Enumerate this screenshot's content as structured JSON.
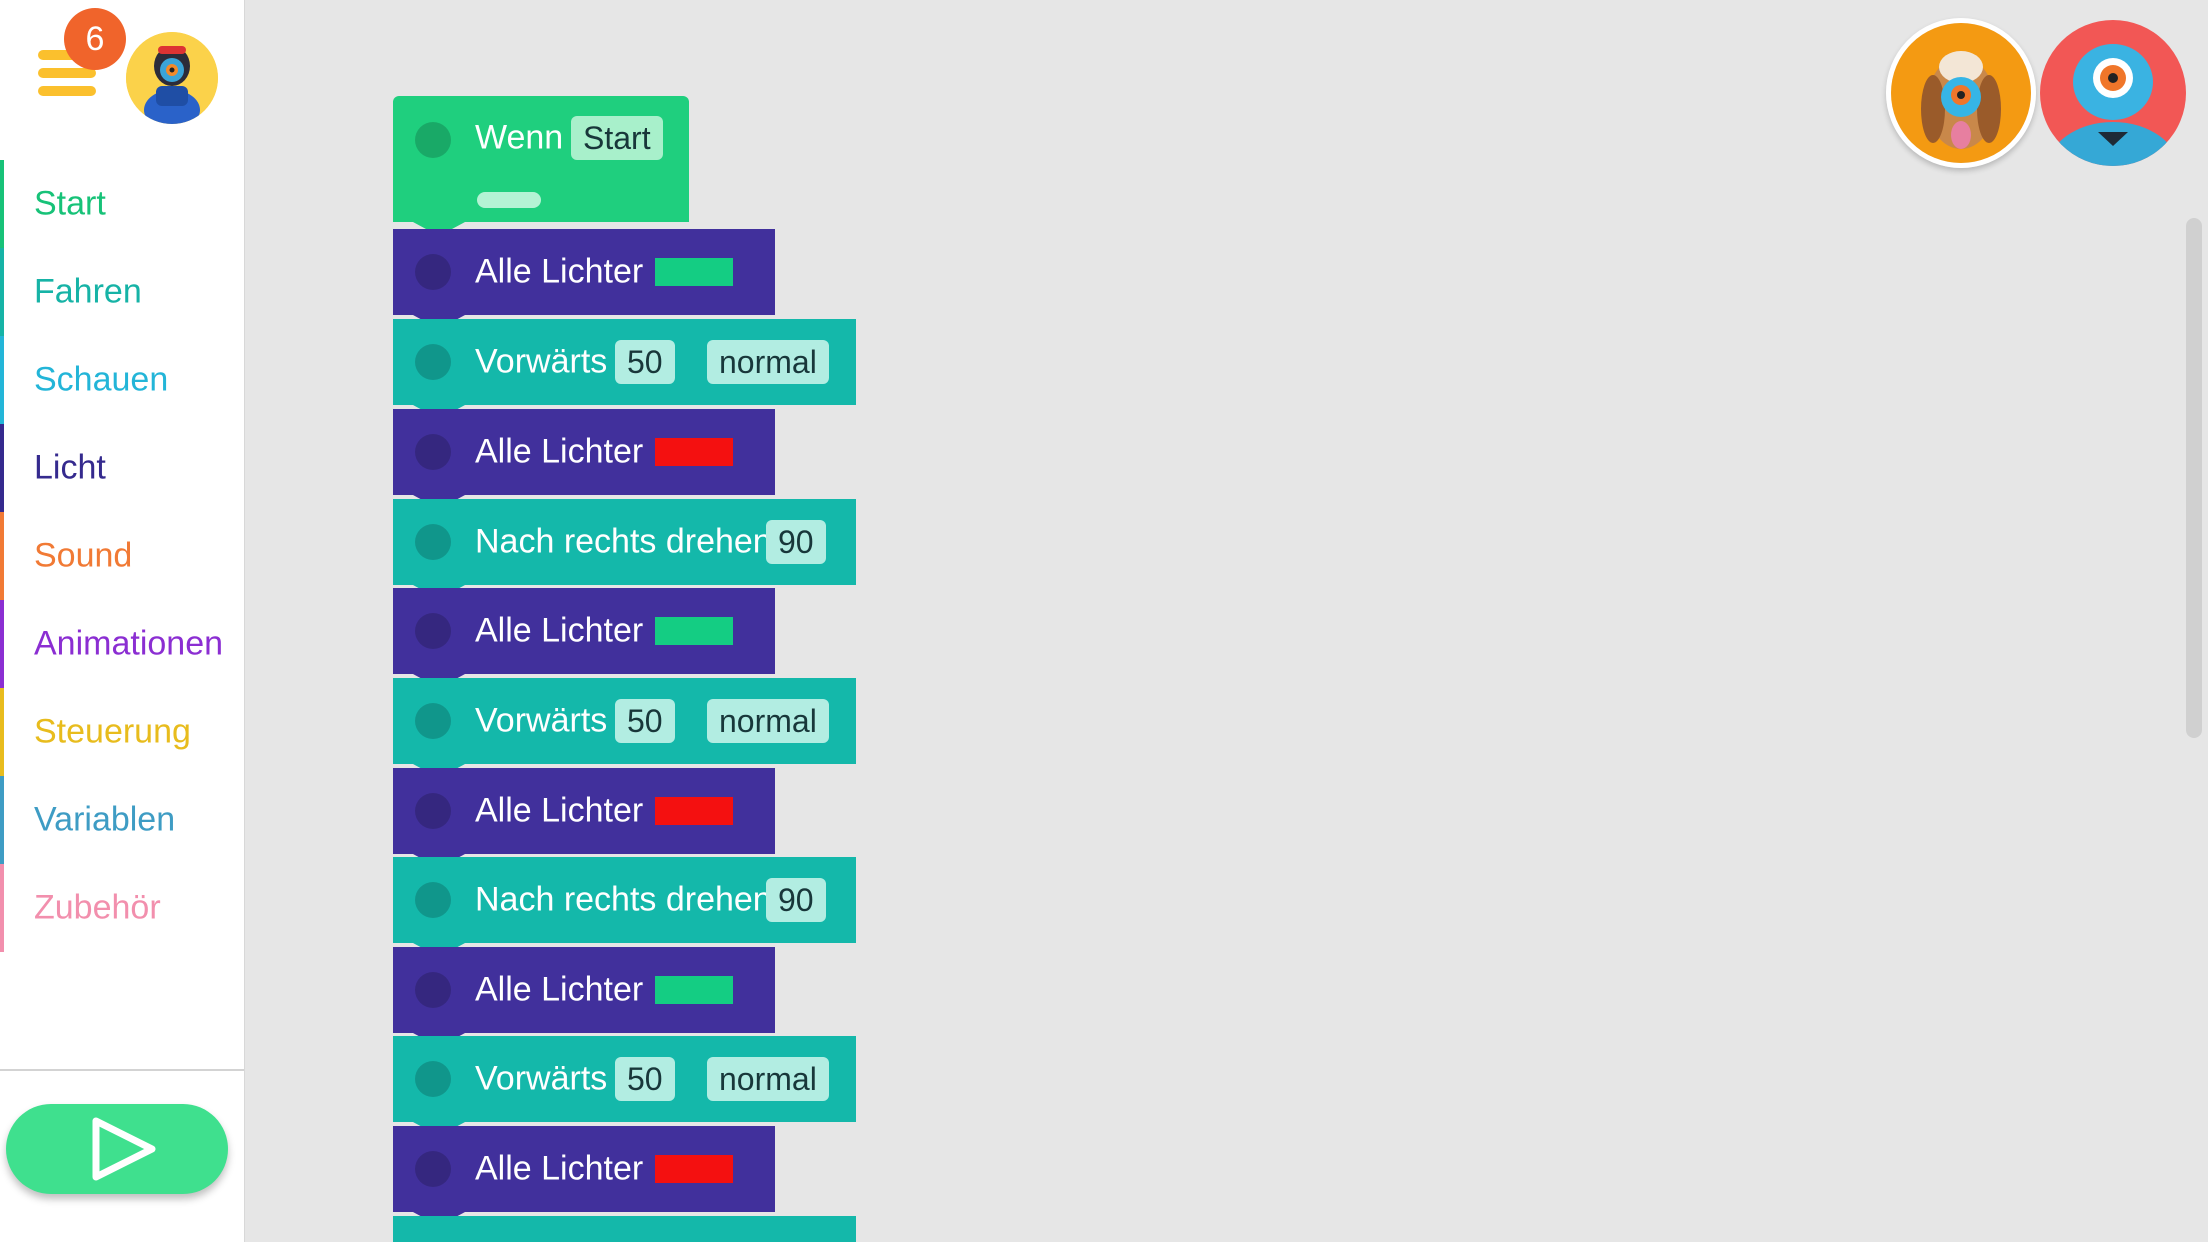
{
  "menu": {
    "badge_count": "6"
  },
  "sidebar": {
    "categories": [
      {
        "label": "Start",
        "color": "#17c278"
      },
      {
        "label": "Fahren",
        "color": "#16b3a6"
      },
      {
        "label": "Schauen",
        "color": "#23b5d8"
      },
      {
        "label": "Licht",
        "color": "#352a8e"
      },
      {
        "label": "Sound",
        "color": "#f17a35"
      },
      {
        "label": "Animationen",
        "color": "#8b2ed2"
      },
      {
        "label": "Steuerung",
        "color": "#e8bc1d"
      },
      {
        "label": "Variablen",
        "color": "#3e9cc4"
      },
      {
        "label": "Zubehör",
        "color": "#f28fad"
      }
    ]
  },
  "colors": {
    "start_block": "#1fcf7e",
    "light_block": "#41309c",
    "drive_block": "#14b8aa",
    "green_light": "#14cd83",
    "red_light": "#f41010"
  },
  "program": {
    "start": {
      "label": "Wenn",
      "trigger": "Start"
    },
    "blocks": [
      {
        "label": "Alle Lichter",
        "color": "green"
      },
      {
        "label": "Vorwärts",
        "value": "50",
        "speed": "normal"
      },
      {
        "label": "Alle Lichter",
        "color": "red"
      },
      {
        "label": "Nach rechts drehen",
        "value": "90"
      },
      {
        "label": "Alle Lichter",
        "color": "green"
      },
      {
        "label": "Vorwärts",
        "value": "50",
        "speed": "normal"
      },
      {
        "label": "Alle Lichter",
        "color": "red"
      },
      {
        "label": "Nach rechts drehen",
        "value": "90"
      },
      {
        "label": "Alle Lichter",
        "color": "green"
      },
      {
        "label": "Vorwärts",
        "value": "50",
        "speed": "normal"
      },
      {
        "label": "Alle Lichter",
        "color": "red"
      }
    ]
  },
  "icons": {
    "run": "play-icon",
    "menu": "hamburger-menu-icon",
    "dash": "dash-robot-icon",
    "dot": "dot-robot-icon"
  }
}
